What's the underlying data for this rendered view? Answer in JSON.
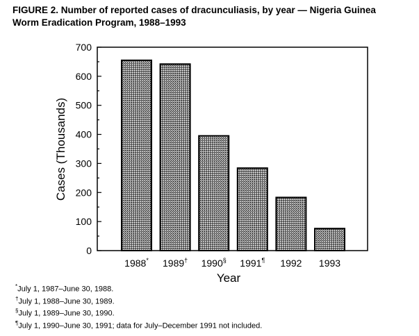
{
  "chart_data": {
    "type": "bar",
    "title_line1": "FIGURE 2. Number of reported cases of dracunculiasis, by year — Nigeria Guinea",
    "title_line2": "Worm Eradication Program, 1988–1993",
    "categories": [
      "1988",
      "1989",
      "1990",
      "1991",
      "1992",
      "1993"
    ],
    "category_marks": [
      "*",
      "†",
      "§",
      "¶",
      "",
      ""
    ],
    "values": [
      655,
      642,
      395,
      284,
      183,
      76
    ],
    "xlabel": "Year",
    "ylabel": "Cases (Thousands)",
    "ylim": [
      0,
      700
    ],
    "yticks": [
      0,
      100,
      200,
      300,
      400,
      500,
      600,
      700
    ],
    "grid": false,
    "bar_color": "#555555",
    "footnotes": [
      {
        "mark": "*",
        "text": "July 1, 1987–June 30, 1988."
      },
      {
        "mark": "†",
        "text": "July 1, 1988–June 30, 1989."
      },
      {
        "mark": "§",
        "text": "July 1, 1989–June 30, 1990."
      },
      {
        "mark": "¶",
        "text": "July 1, 1990–June 30, 1991; data for July–December 1991 not included."
      }
    ]
  }
}
